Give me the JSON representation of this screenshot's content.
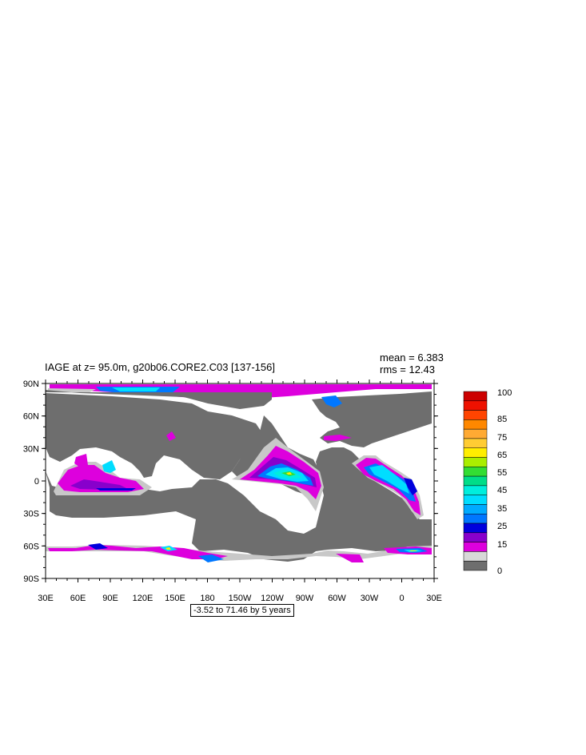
{
  "title": "IAGE at z=  95.0m, g20b06.CORE2.C03 [137-156]",
  "stats": {
    "mean": "mean = 6.383",
    "rms": "rms = 12.43"
  },
  "contour_info": "-3.52 to 71.46 by 5 years",
  "lat_labels": [
    "90N",
    "60N",
    "30N",
    "0",
    "30S",
    "60S",
    "90S"
  ],
  "lon_labels": [
    "30E",
    "60E",
    "90E",
    "120E",
    "150E",
    "180",
    "150W",
    "120W",
    "90W",
    "60W",
    "30W",
    "0",
    "30E"
  ],
  "colorbar": {
    "labels": [
      "100",
      "85",
      "75",
      "65",
      "55",
      "45",
      "35",
      "25",
      "15",
      "0"
    ],
    "colors": [
      "#cc0000",
      "#ee1100",
      "#ff4400",
      "#ff8800",
      "#ffaa33",
      "#ffcc33",
      "#ffee00",
      "#aaee00",
      "#33dd33",
      "#00dd88",
      "#00eedd",
      "#00ddff",
      "#00aaff",
      "#0077ff",
      "#0000dd",
      "#8800cc",
      "#dd00dd",
      "#d8d8d8",
      "#6e6e6e"
    ]
  },
  "colors": {
    "land": "#6e6e6e",
    "ocean": "#ffffff",
    "low": "#c8c8c8",
    "magenta": "#dd00dd",
    "purple": "#8800cc",
    "blue": "#0000dd",
    "mid_blue": "#0077ff",
    "cyan": "#00ddff",
    "aqua": "#00eedd",
    "green": "#33dd33",
    "yellow": "#ffee00"
  }
}
